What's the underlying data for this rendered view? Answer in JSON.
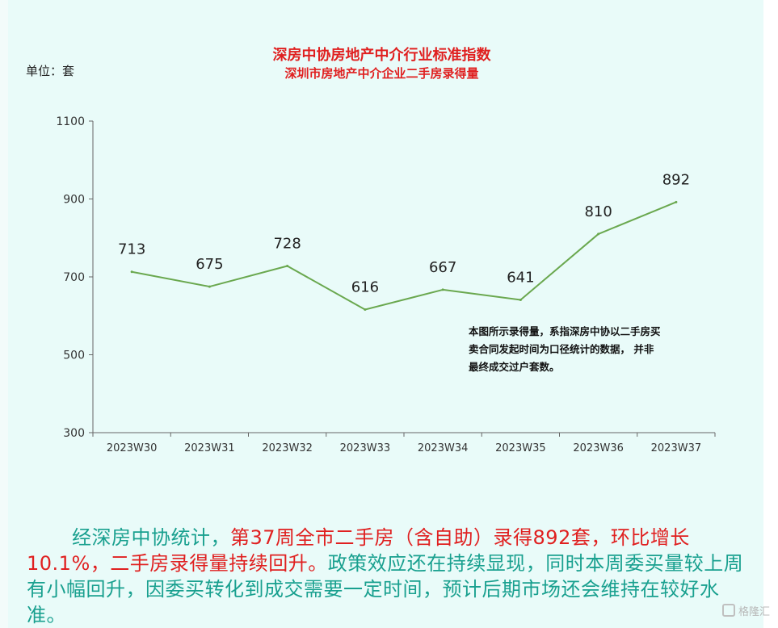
{
  "header": {
    "unit": "单位：套",
    "title": "深房中协房地产中介行业标准指数",
    "subtitle": "深圳市房地产中介企业二手房录得量"
  },
  "chart_data": {
    "type": "line",
    "title": "深房中协房地产中介行业标准指数",
    "subtitle": "深圳市房地产中介企业二手房录得量",
    "unit": "单位：套",
    "categories": [
      "2023W30",
      "2023W31",
      "2023W32",
      "2023W33",
      "2023W34",
      "2023W35",
      "2023W36",
      "2023W37"
    ],
    "series": [
      {
        "values": [
          713,
          675,
          728,
          616,
          667,
          641,
          810,
          892
        ],
        "color": "#6aa84f"
      }
    ],
    "ylim": [
      300,
      1100
    ],
    "yticks": [
      300,
      500,
      700,
      900,
      1100
    ],
    "grid": false,
    "data_labels": true
  },
  "note": "本图所示录得量，系指深房中协以二手房买卖合同发起时间为口径统计的数据， 并非最终成交过户套数。",
  "summary": {
    "part1": "经深房中协统计，",
    "part2": "第37周全市二手房（含自助）录得892套，环比增长10.1%，二手房录得量持续回升。",
    "part3": "政策效应还在持续显现，同时本周委买量较上周有小幅回升，因委买转化到成交需要一定时间，预计后期市场还会维持在较好水准。"
  },
  "watermark": "格隆汇",
  "colors": {
    "background": "#e9fbf9",
    "title": "#e02020",
    "line": "#6aa84f",
    "summary_text": "#19a08f",
    "summary_highlight": "#e02020"
  }
}
